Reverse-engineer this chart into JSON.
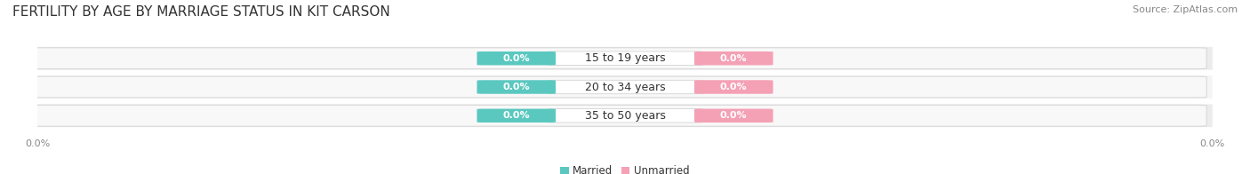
{
  "title": "FERTILITY BY AGE BY MARRIAGE STATUS IN KIT CARSON",
  "source": "Source: ZipAtlas.com",
  "age_groups": [
    "15 to 19 years",
    "20 to 34 years",
    "35 to 50 years"
  ],
  "married_values": [
    0.0,
    0.0,
    0.0
  ],
  "unmarried_values": [
    0.0,
    0.0,
    0.0
  ],
  "married_color": "#5bc8c0",
  "unmarried_color": "#f4a0b5",
  "bar_face_color": "#f0f0f0",
  "bar_stripe_color": "#e8e8e8",
  "background_color": "#ffffff",
  "title_fontsize": 11,
  "source_fontsize": 8,
  "badge_fontsize": 8,
  "age_fontsize": 9,
  "legend_fontsize": 8.5,
  "axis_label_fontsize": 8,
  "figsize": [
    14.06,
    1.96
  ],
  "dpi": 100,
  "bar_height": 0.7,
  "legend_labels": [
    "Married",
    "Unmarried"
  ],
  "x_tick_label": "0.0%"
}
